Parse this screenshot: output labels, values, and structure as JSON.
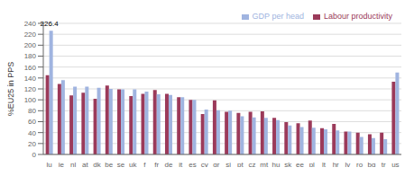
{
  "chart_data": {
    "type": "bar",
    "ylabel": "%EU25 in PPS",
    "categories": [
      "lu",
      "ie",
      "nl",
      "at",
      "dk",
      "be",
      "se",
      "uk",
      "f",
      "fr",
      "de",
      "it",
      "es",
      "cy",
      "gr",
      "si",
      "pt",
      "cz",
      "mt",
      "hu",
      "sk",
      "ee",
      "pl",
      "lt",
      "hr",
      "lv",
      "ro",
      "bg",
      "tr",
      "us"
    ],
    "series": [
      {
        "name": "Labour productivity",
        "color": "#9b3a5a",
        "values": [
          145,
          129,
          108,
          113,
          102,
          126,
          119,
          107,
          111,
          118,
          111,
          105,
          100,
          74,
          99,
          78,
          76,
          78,
          79,
          67,
          59,
          57,
          62,
          48,
          56,
          42,
          40,
          37,
          40,
          133
        ]
      },
      {
        "name": "GDP per head",
        "color": "#a0b4e0",
        "values": [
          226.4,
          136,
          124,
          124,
          122,
          120,
          119,
          119,
          115,
          110,
          109,
          105,
          100,
          82,
          81,
          80,
          70,
          68,
          67,
          63,
          53,
          50,
          49,
          46,
          44,
          42,
          32,
          30,
          28,
          150
        ]
      }
    ],
    "ylim": [
      0,
      240
    ],
    "yticks": [
      0,
      20,
      40,
      60,
      80,
      100,
      120,
      140,
      160,
      180,
      200,
      220,
      240
    ],
    "grid": true,
    "legend": "upper right",
    "annotations": [
      {
        "text": "226.4",
        "x": "lu",
        "y": 226.4
      }
    ]
  }
}
